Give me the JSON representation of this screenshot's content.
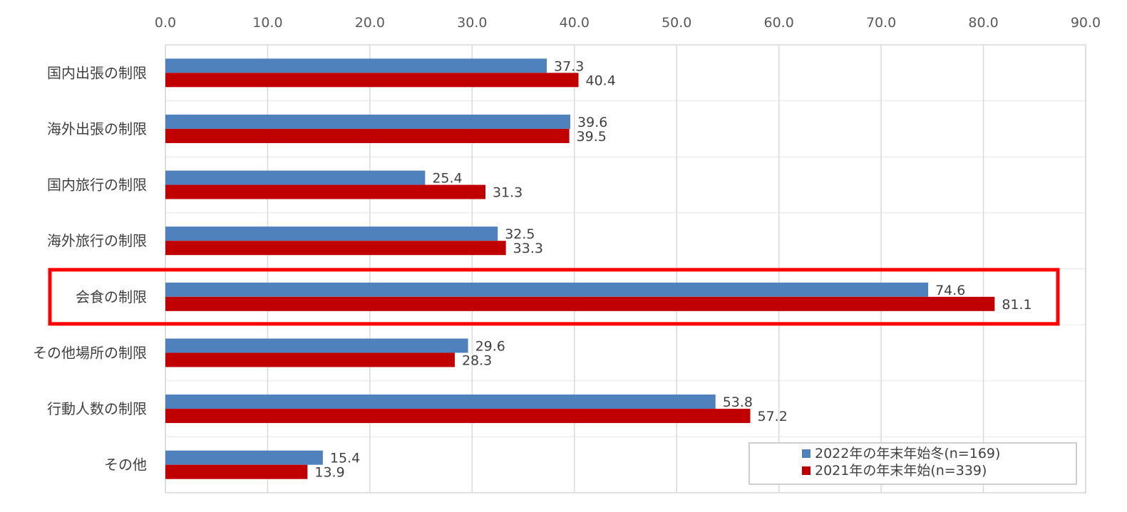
{
  "chart_data": {
    "type": "bar",
    "orientation": "horizontal",
    "title": "",
    "xlabel": "",
    "ylabel": "",
    "xlim": [
      0,
      90
    ],
    "tick_values": [
      0,
      10,
      20,
      30,
      40,
      50,
      60,
      70,
      80,
      90
    ],
    "tick_labels": [
      "0.0",
      "10.0",
      "20.0",
      "30.0",
      "40.0",
      "50.0",
      "60.0",
      "70.0",
      "80.0",
      "90.0"
    ],
    "grid": true,
    "axis_position": "top",
    "categories": [
      "国内出張の制限",
      "海外出張の制限",
      "国内旅行の制限",
      "海外旅行の制限",
      "会食の制限",
      "その他場所の制限",
      "行動人数の制限",
      "その他"
    ],
    "series": [
      {
        "name": "2022年の年末年始冬(n=169)",
        "color": "#4f81bd",
        "values": [
          37.3,
          39.6,
          25.4,
          32.5,
          74.6,
          29.6,
          53.8,
          15.4
        ],
        "labels": [
          "37.3",
          "39.6",
          "25.4",
          "32.5",
          "74.6",
          "29.6",
          "53.8",
          "15.4"
        ]
      },
      {
        "name": "2021年の年末年始(n=339)",
        "color": "#c00000",
        "values": [
          40.4,
          39.5,
          31.3,
          33.3,
          81.1,
          28.3,
          57.2,
          13.9
        ],
        "labels": [
          "40.4",
          "39.5",
          "31.3",
          "33.3",
          "81.1",
          "28.3",
          "57.2",
          "13.9"
        ]
      }
    ],
    "legend_position": "bottom-right",
    "highlight": {
      "category": "会食の制限",
      "color": "#ff0000"
    }
  }
}
